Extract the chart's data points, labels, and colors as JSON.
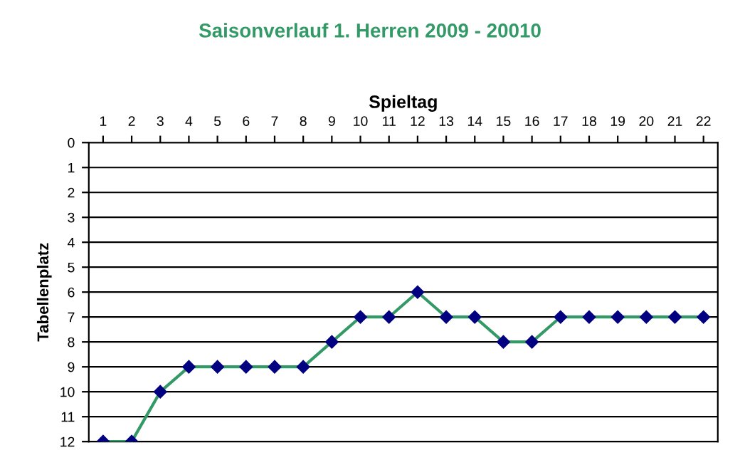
{
  "chart_data": {
    "type": "line",
    "title": "Saisonverlauf 1. Herren 2009 - 20010",
    "xlabel": "Spieltag",
    "ylabel": "Tabellenplatz",
    "x": [
      1,
      2,
      3,
      4,
      5,
      6,
      7,
      8,
      9,
      10,
      11,
      12,
      13,
      14,
      15,
      16,
      17,
      18,
      19,
      20,
      21,
      22
    ],
    "series": [
      {
        "color": "#339966",
        "values": [
          12,
          12,
          10,
          9,
          9,
          9,
          9,
          9,
          8,
          7,
          7,
          6,
          7,
          7,
          8,
          8,
          7,
          7,
          7,
          7,
          7,
          7
        ]
      }
    ],
    "xlim": [
      0.5,
      22.5
    ],
    "xticks": [
      1,
      2,
      3,
      4,
      5,
      6,
      7,
      8,
      9,
      10,
      11,
      12,
      13,
      14,
      15,
      16,
      17,
      18,
      19,
      20,
      21,
      22
    ],
    "ylim": [
      12,
      0
    ],
    "yticks": [
      0,
      1,
      2,
      3,
      4,
      5,
      6,
      7,
      8,
      9,
      10,
      11,
      12
    ],
    "grid": "y",
    "marker": "diamond",
    "line_style": "solid",
    "legend": false
  }
}
